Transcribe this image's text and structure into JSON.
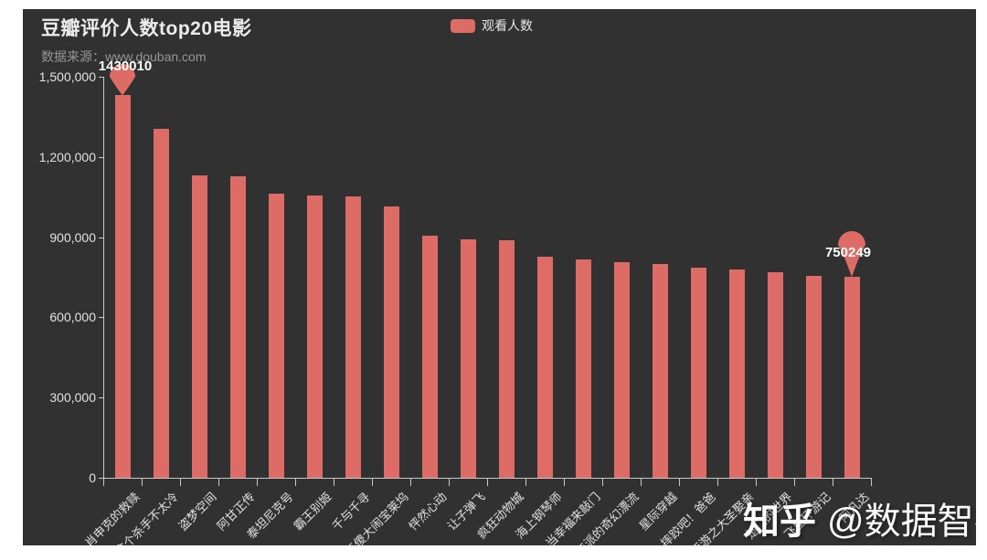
{
  "page": {
    "title": "豆瓣评价人数top20电影",
    "subtitle": "数据来源：www.douban.com",
    "watermark": {
      "brand": "知乎",
      "handle": "@数据智农"
    }
  },
  "legend": {
    "label": "观看人数",
    "color": "#dd6b66"
  },
  "colors": {
    "background": "#313131",
    "bar": "#dd6b66",
    "axis": "#c8c8c8",
    "text": "#e8e8e8"
  },
  "chart_data": {
    "type": "bar",
    "title": "豆瓣评价人数top20电影",
    "subtitle": "数据来源：www.douban.com",
    "legend": [
      "观看人数"
    ],
    "legend_position": "top-center",
    "grid": false,
    "xlabel": "",
    "ylabel": "",
    "ylim": [
      0,
      1500000
    ],
    "y_ticks": [
      {
        "value": 1500000,
        "label": "1,500,000"
      },
      {
        "value": 1200000,
        "label": "1,200,000"
      },
      {
        "value": 900000,
        "label": "900,000"
      },
      {
        "value": 600000,
        "label": "600,000"
      },
      {
        "value": 300000,
        "label": "300,000"
      },
      {
        "value": 0,
        "label": "0"
      }
    ],
    "categories": [
      "肖申克的救赎",
      "这个杀手不太冷",
      "盗梦空间",
      "阿甘正传",
      "泰坦尼克号",
      "霸王别姬",
      "千与千寻",
      "三傻大闹宝莱坞",
      "怦然心动",
      "让子弹飞",
      "疯狂动物城",
      "海上钢琴师",
      "当幸福来敲门",
      "少年派的奇幻漂流",
      "星际穿越",
      "摔跤吧！爸爸",
      "大话西游之大圣娶亲",
      "楚门的世界",
      "飞屋环游记",
      "阿凡达"
    ],
    "series": [
      {
        "name": "观看人数",
        "values": [
          1430010,
          1305000,
          1130000,
          1126000,
          1063000,
          1057000,
          1052000,
          1016000,
          905000,
          893000,
          887000,
          827000,
          817000,
          807000,
          799000,
          785000,
          778000,
          770000,
          756000,
          750249
        ]
      }
    ],
    "mark_points": [
      {
        "index": 0,
        "label": "1430010"
      },
      {
        "index": 19,
        "label": "750249"
      }
    ]
  }
}
